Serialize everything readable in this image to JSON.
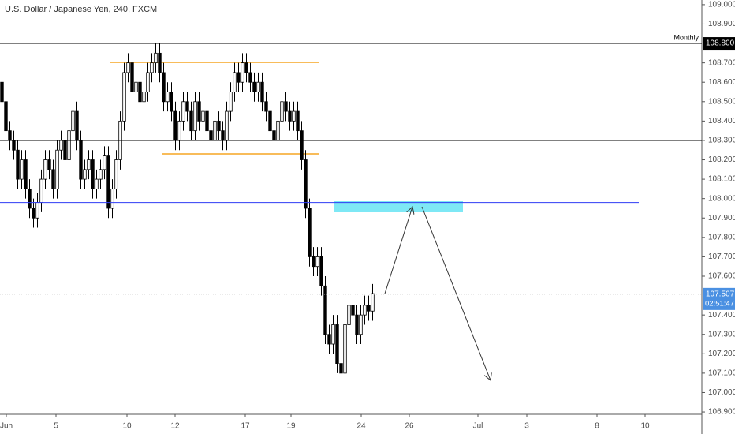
{
  "chart_data": {
    "type": "candlestick",
    "title": "U.S. Dollar / Japanese Yen, 240, FXCM",
    "ylim": [
      106.888,
      109.024
    ],
    "yticks": [
      {
        "value": 106.9,
        "label": "106.900"
      },
      {
        "value": 107.0,
        "label": "107.000"
      },
      {
        "value": 107.1,
        "label": "107.100"
      },
      {
        "value": 107.2,
        "label": "107.200"
      },
      {
        "value": 107.3,
        "label": "107.300"
      },
      {
        "value": 107.4,
        "label": "107.400"
      },
      {
        "value": 107.6,
        "label": "107.600"
      },
      {
        "value": 107.7,
        "label": "107.700"
      },
      {
        "value": 107.8,
        "label": "107.800"
      },
      {
        "value": 107.9,
        "label": "107.900"
      },
      {
        "value": 108.0,
        "label": "108.000"
      },
      {
        "value": 108.1,
        "label": "108.100"
      },
      {
        "value": 108.2,
        "label": "108.200"
      },
      {
        "value": 108.3,
        "label": "108.300"
      },
      {
        "value": 108.4,
        "label": "108.400"
      },
      {
        "value": 108.5,
        "label": "108.500"
      },
      {
        "value": 108.6,
        "label": "108.600"
      },
      {
        "value": 108.7,
        "label": "108.700"
      },
      {
        "value": 108.9,
        "label": "108.900"
      },
      {
        "value": 109.0,
        "label": "109.000"
      }
    ],
    "xlim": [
      0,
      178
    ],
    "xticks": [
      {
        "value": 1.6,
        "label": "Jun"
      },
      {
        "value": 14.2,
        "label": "5"
      },
      {
        "value": 32.2,
        "label": "10"
      },
      {
        "value": 44.4,
        "label": "12"
      },
      {
        "value": 62.2,
        "label": "17"
      },
      {
        "value": 73.8,
        "label": "19"
      },
      {
        "value": 91.6,
        "label": "24"
      },
      {
        "value": 103.8,
        "label": "26"
      },
      {
        "value": 121.2,
        "label": "Jul"
      },
      {
        "value": 133.6,
        "label": "3"
      },
      {
        "value": 151.4,
        "label": "8"
      },
      {
        "value": 163.6,
        "label": "10"
      }
    ],
    "up_color": "#ffffff",
    "down_color": "#000000",
    "open": [
      108.6,
      108.5,
      108.35,
      108.3,
      108.25,
      108.1,
      108.2,
      108.05,
      107.95,
      107.9,
      107.98,
      108.1,
      108.2,
      108.15,
      108.05,
      108.25,
      108.3,
      108.2,
      108.35,
      108.45,
      108.3,
      108.1,
      108.15,
      108.2,
      108.05,
      108.1,
      108.15,
      108.22,
      107.95,
      108.05,
      108.2,
      108.4,
      108.65,
      108.7,
      108.55,
      108.6,
      108.5,
      108.55,
      108.65,
      108.7,
      108.75,
      108.65,
      108.5,
      108.55,
      108.45,
      108.3,
      108.4,
      108.5,
      108.45,
      108.35,
      108.5,
      108.4,
      108.45,
      108.35,
      108.3,
      108.4,
      108.35,
      108.3,
      108.45,
      108.55,
      108.65,
      108.6,
      108.7,
      108.65,
      108.6,
      108.55,
      108.6,
      108.5,
      108.45,
      108.35,
      108.3,
      108.4,
      108.5,
      108.45,
      108.4,
      108.45,
      108.35,
      108.2,
      107.95,
      107.7,
      107.65,
      107.7,
      107.55,
      107.3,
      107.25,
      107.35,
      107.15,
      107.1,
      107.35,
      107.45,
      107.4,
      107.3,
      107.4,
      107.45,
      107.42
    ],
    "high": [
      108.65,
      108.55,
      108.4,
      108.35,
      108.3,
      108.25,
      108.25,
      108.1,
      108.0,
      108.03,
      108.15,
      108.25,
      108.25,
      108.2,
      108.3,
      108.35,
      108.35,
      108.4,
      108.5,
      108.5,
      108.35,
      108.2,
      108.25,
      108.25,
      108.15,
      108.2,
      108.27,
      108.27,
      108.1,
      108.25,
      108.45,
      108.7,
      108.75,
      108.75,
      108.65,
      108.65,
      108.6,
      108.7,
      108.75,
      108.8,
      108.8,
      108.7,
      108.6,
      108.6,
      108.5,
      108.45,
      108.55,
      108.55,
      108.5,
      108.55,
      108.55,
      108.5,
      108.5,
      108.4,
      108.45,
      108.45,
      108.4,
      108.5,
      108.6,
      108.7,
      108.7,
      108.75,
      108.75,
      108.7,
      108.65,
      108.65,
      108.65,
      108.55,
      108.5,
      108.4,
      108.45,
      108.55,
      108.55,
      108.5,
      108.5,
      108.5,
      108.4,
      108.25,
      108.0,
      107.75,
      107.75,
      107.75,
      107.6,
      107.35,
      107.4,
      107.4,
      107.2,
      107.4,
      107.5,
      107.5,
      107.45,
      107.45,
      107.5,
      107.5,
      107.56
    ],
    "low": [
      108.45,
      108.3,
      108.25,
      108.2,
      108.05,
      108.05,
      108.0,
      107.9,
      107.85,
      107.85,
      107.93,
      108.05,
      108.1,
      108.0,
      108.0,
      108.2,
      108.15,
      108.15,
      108.3,
      108.25,
      108.05,
      108.05,
      108.1,
      108.0,
      108.0,
      108.05,
      108.1,
      107.9,
      107.9,
      108.0,
      108.15,
      108.35,
      108.6,
      108.5,
      108.5,
      108.45,
      108.45,
      108.5,
      108.6,
      108.65,
      108.6,
      108.45,
      108.45,
      108.4,
      108.25,
      108.25,
      108.35,
      108.4,
      108.3,
      108.3,
      108.35,
      108.35,
      108.3,
      108.25,
      108.25,
      108.3,
      108.25,
      108.25,
      108.4,
      108.5,
      108.55,
      108.55,
      108.6,
      108.55,
      108.5,
      108.5,
      108.45,
      108.4,
      108.3,
      108.25,
      108.25,
      108.35,
      108.4,
      108.35,
      108.35,
      108.3,
      108.15,
      107.9,
      107.65,
      107.6,
      107.6,
      107.5,
      107.25,
      107.2,
      107.2,
      107.1,
      107.05,
      107.05,
      107.3,
      107.35,
      107.25,
      107.25,
      107.35,
      107.37,
      107.37
    ],
    "close": [
      108.5,
      108.35,
      108.3,
      108.25,
      108.1,
      108.2,
      108.05,
      107.95,
      107.9,
      107.98,
      108.1,
      108.2,
      108.15,
      108.05,
      108.25,
      108.3,
      108.2,
      108.35,
      108.45,
      108.3,
      108.1,
      108.15,
      108.2,
      108.05,
      108.1,
      108.15,
      108.22,
      107.95,
      108.05,
      108.2,
      108.4,
      108.65,
      108.7,
      108.55,
      108.6,
      108.5,
      108.55,
      108.65,
      108.7,
      108.75,
      108.65,
      108.5,
      108.55,
      108.45,
      108.3,
      108.4,
      108.5,
      108.45,
      108.35,
      108.5,
      108.4,
      108.45,
      108.35,
      108.3,
      108.4,
      108.35,
      108.3,
      108.45,
      108.55,
      108.65,
      108.6,
      108.7,
      108.65,
      108.6,
      108.55,
      108.6,
      108.5,
      108.45,
      108.35,
      108.3,
      108.4,
      108.5,
      108.45,
      108.4,
      108.45,
      108.35,
      108.2,
      107.95,
      107.7,
      107.65,
      107.7,
      107.55,
      107.3,
      107.25,
      107.35,
      107.15,
      107.1,
      107.35,
      107.45,
      107.4,
      107.3,
      107.4,
      107.45,
      107.42,
      107.51
    ],
    "horizontal_lines": [
      {
        "value": 108.8,
        "label": "Monthly",
        "price_label": "108.800",
        "color": "#000000"
      },
      {
        "value": 108.3,
        "color": "#000000"
      },
      {
        "value": 107.98,
        "color": "#2f3cf5"
      }
    ],
    "last_price": {
      "value": 107.507,
      "label": "107.507",
      "color": "#4a90e2"
    },
    "countdown": "02:51:47"
  }
}
